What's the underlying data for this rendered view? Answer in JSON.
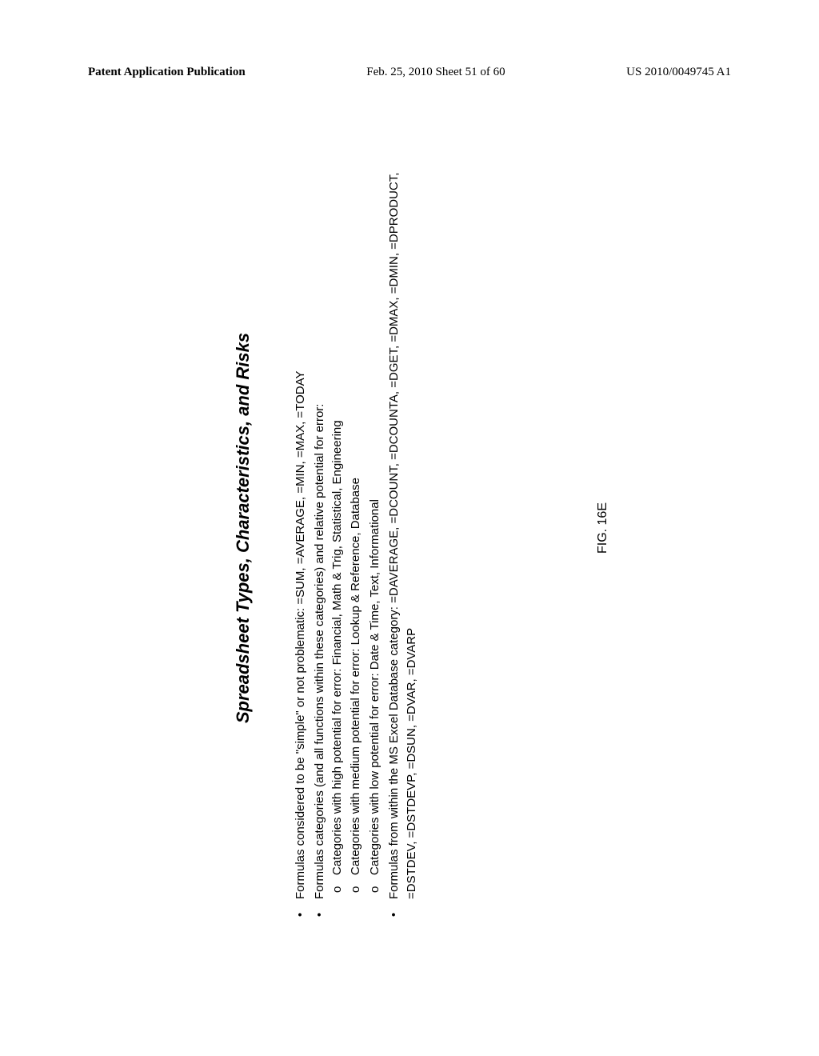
{
  "header": {
    "left": "Patent Application Publication",
    "center": "Feb. 25, 2010  Sheet 51 of 60",
    "right": "US 2010/0049745 A1"
  },
  "title": "Spreadsheet Types, Characteristics, and Risks",
  "bullets": {
    "b1": "Formulas considered to be \"simple\" or not problematic: =SUM, =AVERAGE, =MIN, =MAX, =TODAY",
    "b2": "Formulas categories (and all functions within these categories) and relative potential for error:",
    "b2_sub": {
      "s1": "Categories with high potential for error: Financial, Math & Trig, Statistical, Engineering",
      "s2": "Categories with medium potential for error: Lookup & Reference, Database",
      "s3": "Categories with low potential for error: Date & Time, Text, Informational"
    },
    "b3": "Formulas from within the MS Excel Database category: =DAVERAGE, =DCOUNT, =DCOUNTA, =DGET, =DMAX, =DMIN, =DPRODUCT, =DSTDEV, =DSTDEVP, =DSUN, =DVAR, =DVARP"
  },
  "figure_label": "FIG. 16E"
}
